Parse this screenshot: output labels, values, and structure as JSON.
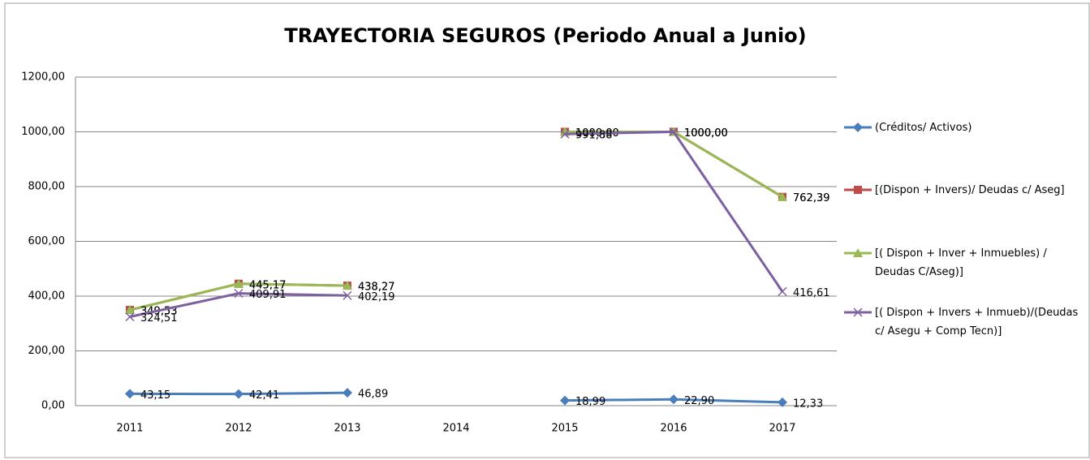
{
  "chart_data": {
    "type": "line",
    "title": "TRAYECTORIA SEGUROS (Periodo Anual a Junio)",
    "categories": [
      "2011",
      "2012",
      "2013",
      "2014",
      "2015",
      "2016",
      "2017"
    ],
    "ylim": [
      0,
      1200
    ],
    "yticks": [
      {
        "value": 0,
        "label": "0,00"
      },
      {
        "value": 200,
        "label": "200,00"
      },
      {
        "value": 400,
        "label": "400,00"
      },
      {
        "value": 600,
        "label": "600,00"
      },
      {
        "value": 800,
        "label": "800,00"
      },
      {
        "value": 1000,
        "label": "1000,00"
      },
      {
        "value": 1200,
        "label": "1200,00"
      }
    ],
    "grid": true,
    "legend": "right",
    "series": [
      {
        "name": "(Créditos/ Activos)",
        "color": "#4a7ebb",
        "marker": "diamond",
        "values": [
          43.15,
          42.41,
          46.89,
          null,
          18.99,
          22.9,
          12.33
        ],
        "value_labels": [
          "43,15",
          "42,41",
          "46,89",
          null,
          "18,99",
          "22,90",
          "12,33"
        ]
      },
      {
        "name": "[(Dispon + Invers)/ Deudas c/ Aseg]",
        "color": "#be4b48",
        "marker": "square",
        "values": [
          349.53,
          445.17,
          438.27,
          null,
          1000.0,
          1000.0,
          762.39
        ],
        "value_labels": [
          "349,53",
          "445,17",
          "438,27",
          null,
          "1000,00",
          "1000,00",
          "762,39"
        ]
      },
      {
        "name": "[( Dispon + Inver + Inmuebles) / Deudas C/Aseg)]",
        "color": "#98b954",
        "marker": "triangle",
        "values": [
          349.53,
          445.17,
          438.27,
          null,
          1000.0,
          1000.0,
          762.39
        ],
        "value_labels": [
          "349,53",
          "445,17",
          "438,27",
          null,
          "1000,00",
          "1000,00",
          "762,39"
        ]
      },
      {
        "name": "[( Dispon + Invers + Inmueb)/(Deudas c/ Asegu + Comp Tecn)]",
        "color": "#7d60a0",
        "marker": "x",
        "values": [
          324.51,
          409.91,
          402.19,
          null,
          991.88,
          1000.0,
          416.61
        ],
        "value_labels": [
          "324,51",
          "409,91",
          "402,19",
          null,
          "991,88",
          "1000,00",
          "416,61"
        ]
      }
    ]
  }
}
